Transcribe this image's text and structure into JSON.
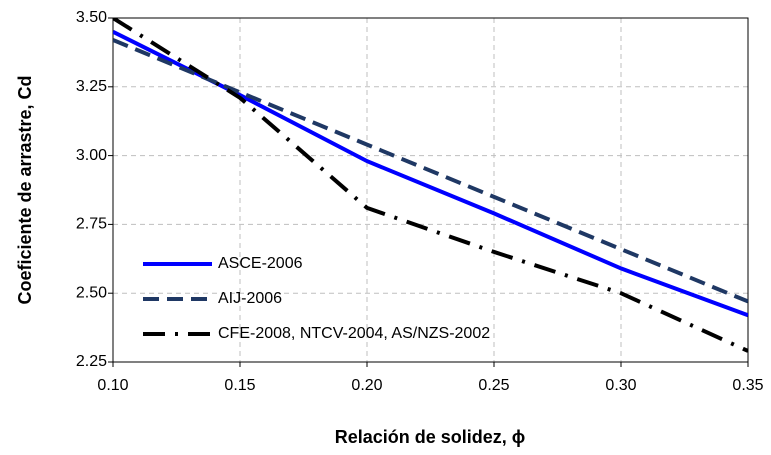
{
  "chart_data": {
    "type": "line",
    "xlabel": "Relación de solidez, ϕ",
    "ylabel": "Coeficiente de arrastre, Cd",
    "x": [
      0.1,
      0.15,
      0.2,
      0.25,
      0.3,
      0.35
    ],
    "series": [
      {
        "name": "ASCE-2006",
        "color": "#0000ff",
        "dash": "solid",
        "values": [
          3.45,
          3.22,
          2.98,
          2.79,
          2.59,
          2.42
        ]
      },
      {
        "name": "AIJ-2006",
        "color": "#1f3864",
        "dash": "dashed",
        "values": [
          3.42,
          3.23,
          3.04,
          2.85,
          2.66,
          2.47
        ]
      },
      {
        "name": "CFE-2008, NTCV-2004, AS/NZS-2002",
        "color": "#000000",
        "dash": "dashdot",
        "values": [
          3.5,
          3.21,
          2.81,
          2.65,
          2.5,
          2.29
        ]
      }
    ],
    "xlim": [
      0.1,
      0.35
    ],
    "xticks": [
      {
        "value": 0.1,
        "label": "0.10"
      },
      0.15,
      {
        "value": 0.2,
        "label": "0.20"
      },
      0.25,
      {
        "value": 0.3,
        "label": "0.30"
      },
      0.35
    ],
    "ylim": [
      2.25,
      3.5
    ],
    "yticks": [
      2.25,
      {
        "value": 2.5,
        "label": "2.50"
      },
      2.75,
      {
        "value": 3,
        "label": "3.00"
      },
      3.25,
      {
        "value": 3.5,
        "label": "3.50"
      }
    ],
    "grid": true,
    "legend": "lower left"
  }
}
